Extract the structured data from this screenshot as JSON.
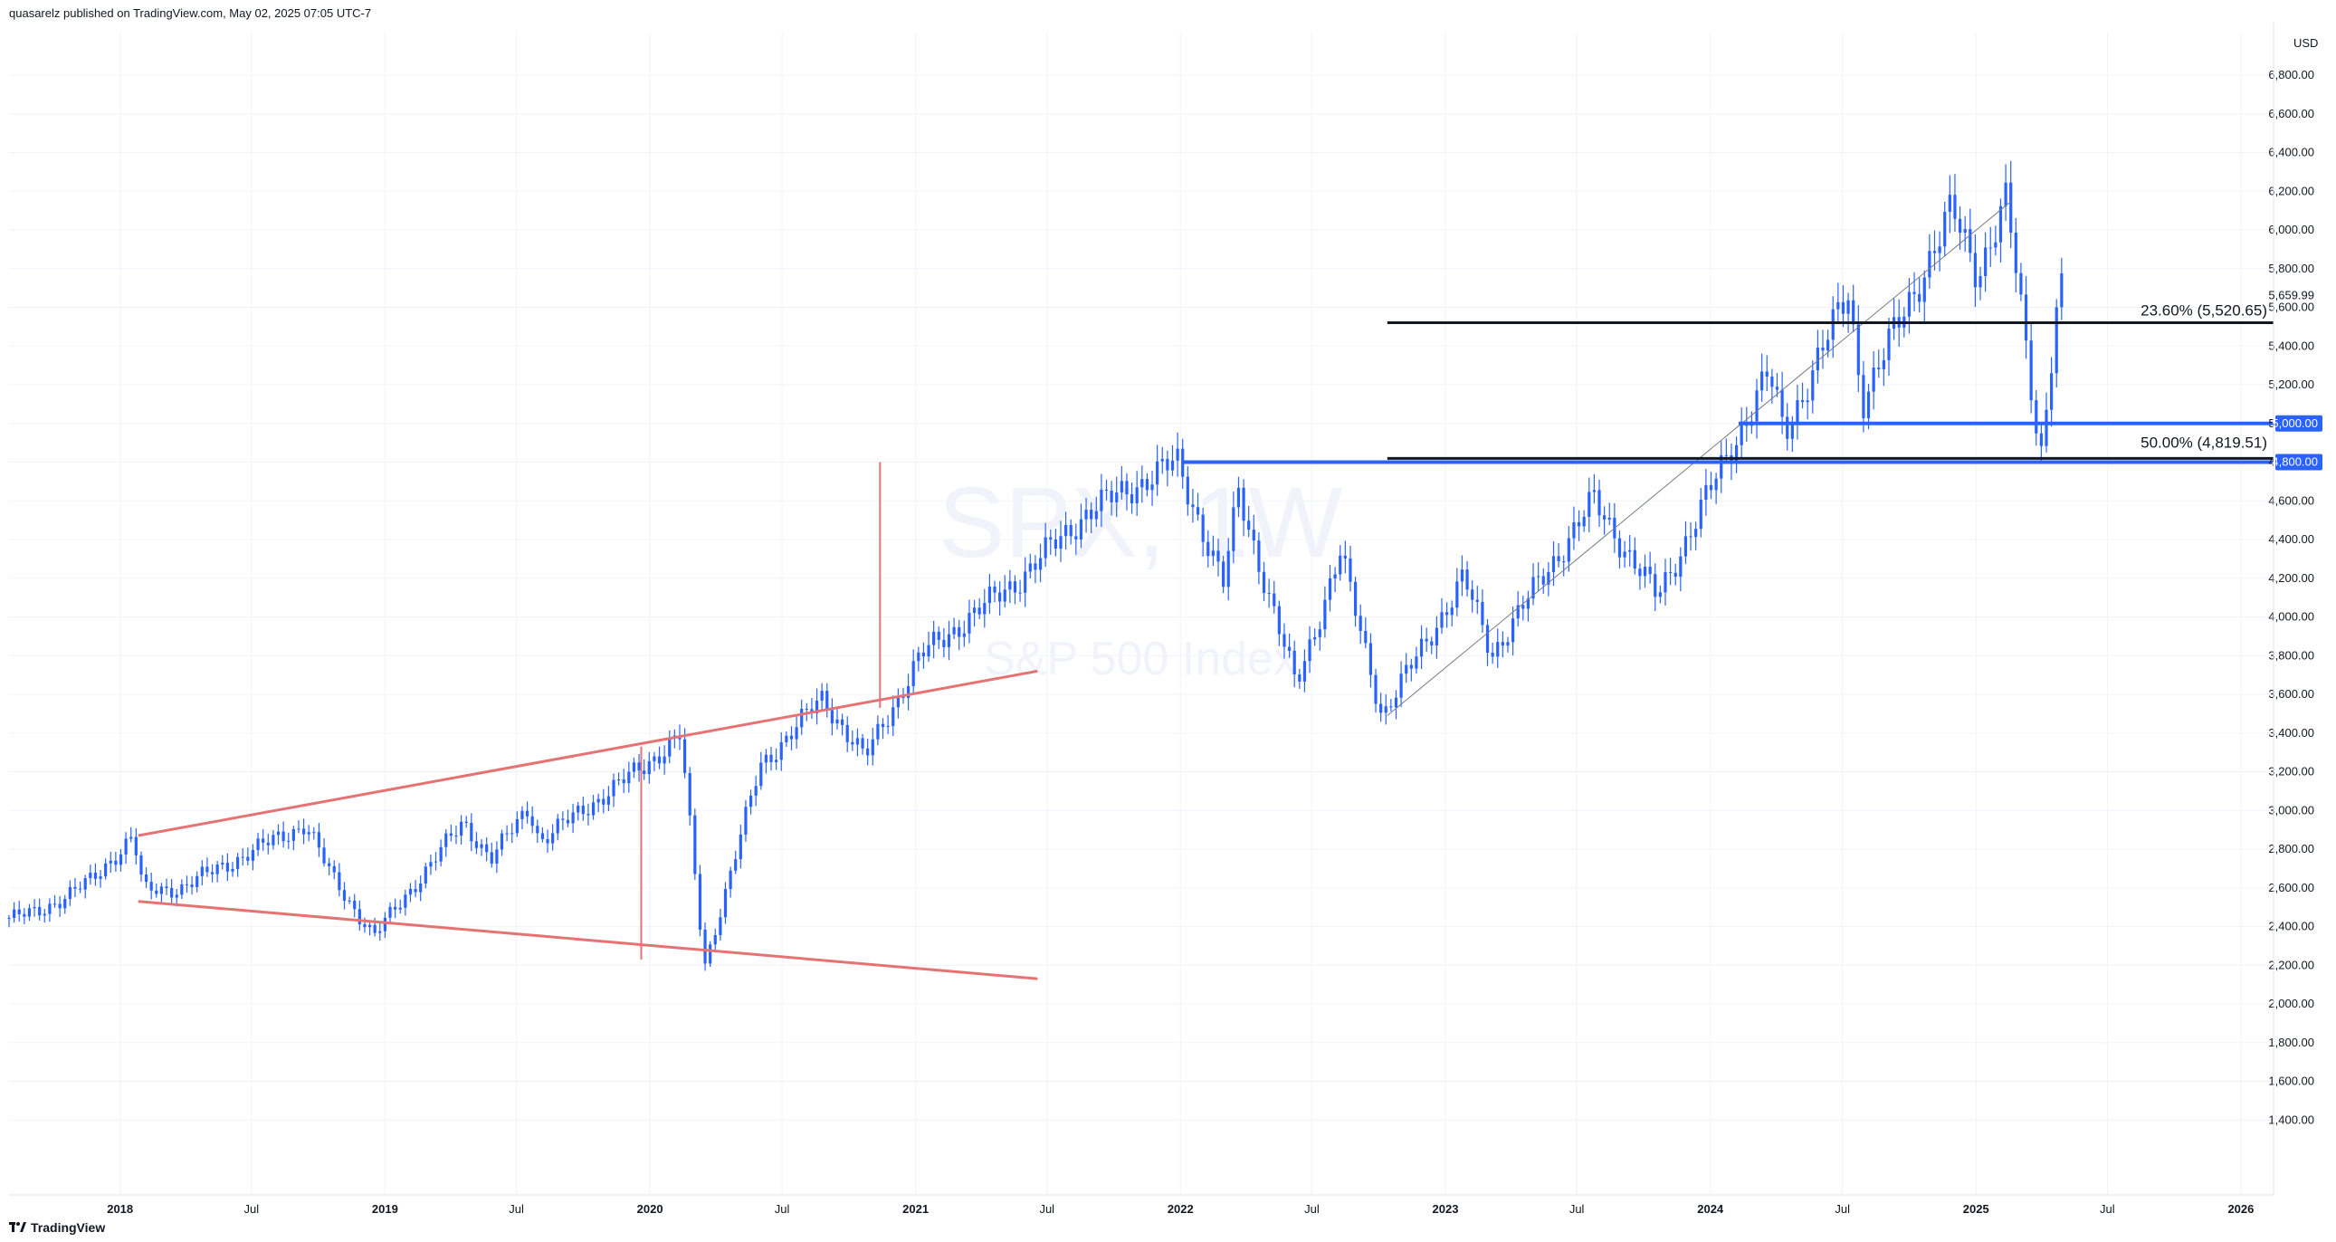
{
  "header": {
    "publisher": "quasarelz published on TradingView.com, May 02, 2025 07:05 UTC-7"
  },
  "footer": {
    "brand": "TradingView",
    "logo_icon": "tradingview-logo-icon"
  },
  "watermark": {
    "symbol": "SPX, 1W",
    "description": "S&P 500 Index"
  },
  "colors": {
    "candles": "#2962ff",
    "wedge": "#e57373",
    "level_blue": "#2962ff",
    "fib_line": "#131722",
    "grid": "#f0f3fa"
  },
  "chart_data": {
    "type": "candlestick",
    "interval": "1W",
    "currency": "USD",
    "y_axis_unit": "USD",
    "ylim": [
      1350,
      6950
    ],
    "y_ticks": [
      "1,400.00",
      "1,600.00",
      "1,800.00",
      "2,000.00",
      "2,200.00",
      "2,400.00",
      "2,600.00",
      "2,800.00",
      "3,000.00",
      "3,200.00",
      "3,400.00",
      "3,600.00",
      "3,800.00",
      "4,000.00",
      "4,200.00",
      "4,400.00",
      "4,600.00",
      "4,800.00",
      "5,000.00",
      "5,200.00",
      "5,400.00",
      "5,600.00",
      "5,800.00",
      "6,000.00",
      "6,200.00",
      "6,400.00",
      "6,600.00",
      "6,800.00"
    ],
    "x_ticks": [
      {
        "label": "2018",
        "year": true
      },
      {
        "label": "Jul",
        "year": false
      },
      {
        "label": "2019",
        "year": true
      },
      {
        "label": "Jul",
        "year": false
      },
      {
        "label": "2020",
        "year": true
      },
      {
        "label": "Jul",
        "year": false
      },
      {
        "label": "2021",
        "year": true
      },
      {
        "label": "Jul",
        "year": false
      },
      {
        "label": "2022",
        "year": true
      },
      {
        "label": "Jul",
        "year": false
      },
      {
        "label": "2023",
        "year": true
      },
      {
        "label": "Jul",
        "year": false
      },
      {
        "label": "2024",
        "year": true
      },
      {
        "label": "Jul",
        "year": false
      },
      {
        "label": "2025",
        "year": true
      },
      {
        "label": "Jul",
        "year": false
      },
      {
        "label": "2026",
        "year": true
      }
    ],
    "price_path": [
      [
        "2017-08-01",
        2440
      ],
      [
        "2017-09-15",
        2470
      ],
      [
        "2017-12-01",
        2640
      ],
      [
        "2018-01-26",
        2870
      ],
      [
        "2018-02-09",
        2580
      ],
      [
        "2018-04-01",
        2600
      ],
      [
        "2018-09-21",
        2930
      ],
      [
        "2018-10-26",
        2660
      ],
      [
        "2018-12-24",
        2350
      ],
      [
        "2019-04-26",
        2940
      ],
      [
        "2019-06-03",
        2750
      ],
      [
        "2019-07-26",
        3020
      ],
      [
        "2019-08-09",
        2840
      ],
      [
        "2019-12-31",
        3230
      ],
      [
        "2020-02-19",
        3390
      ],
      [
        "2020-03-23",
        2190
      ],
      [
        "2020-06-08",
        3230
      ],
      [
        "2020-09-02",
        3580
      ],
      [
        "2020-10-30",
        3270
      ],
      [
        "2021-01-15",
        3800
      ],
      [
        "2021-06-01",
        4200
      ],
      [
        "2021-09-01",
        4540
      ],
      [
        "2022-01-03",
        4800
      ],
      [
        "2022-03-08",
        4170
      ],
      [
        "2022-03-29",
        4640
      ],
      [
        "2022-06-16",
        3640
      ],
      [
        "2022-08-16",
        4330
      ],
      [
        "2022-10-13",
        3490
      ],
      [
        "2023-02-02",
        4200
      ],
      [
        "2023-03-13",
        3810
      ],
      [
        "2023-07-31",
        4600
      ],
      [
        "2023-10-27",
        4100
      ],
      [
        "2024-03-28",
        5260
      ],
      [
        "2024-04-19",
        4950
      ],
      [
        "2024-07-16",
        5670
      ],
      [
        "2024-08-05",
        5120
      ],
      [
        "2024-12-06",
        6100
      ],
      [
        "2025-01-10",
        5780
      ],
      [
        "2025-02-19",
        6150
      ],
      [
        "2025-04-07",
        4830
      ],
      [
        "2025-05-02",
        5690
      ]
    ],
    "annotations": {
      "wedge_upper": [
        [
          "2018-01-26",
          2870
        ],
        [
          "2021-06-18",
          3720
        ]
      ],
      "wedge_lower": [
        [
          "2018-01-26",
          2530
        ],
        [
          "2021-06-18",
          2130
        ]
      ],
      "breakout_vertical": {
        "date": "2020-11-13",
        "from": 3530,
        "to": 4800
      },
      "pattern_vertical": {
        "date": "2019-12-20",
        "from": 2230,
        "to": 3330
      },
      "trendline": [
        [
          "2022-10-13",
          3490
        ],
        [
          "2025-02-19",
          6150
        ]
      ],
      "level_4800": {
        "value": 4800,
        "from": "2022-01-03",
        "label": "4,800.00"
      },
      "level_5000": {
        "value": 5000,
        "from": "2024-02-09",
        "label": "5,000.00"
      },
      "fib_23_6": {
        "value": 5520.65,
        "from": "2022-10-13",
        "label": "23.60% (5,520.65)"
      },
      "fib_50": {
        "value": 4819.51,
        "from": "2022-10-13",
        "label": "50.00% (4,819.51)"
      },
      "last_price_label": "5,659.99"
    }
  }
}
